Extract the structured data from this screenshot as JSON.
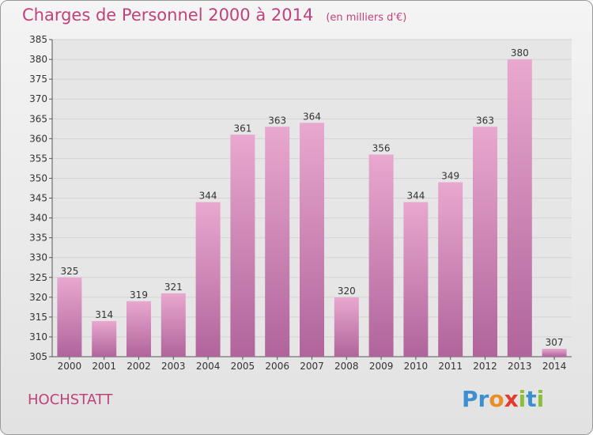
{
  "header": {
    "title": "Charges de Personnel 2000 à 2014",
    "subtitle": "(en milliers d'€)"
  },
  "place_name": "HOCHSTATT",
  "logo": {
    "text": "Proxiti",
    "letters": [
      {
        "ch": "P",
        "color": "#3c8fd0"
      },
      {
        "ch": "r",
        "color": "#3c8fd0"
      },
      {
        "ch": "o",
        "color": "#e98f27"
      },
      {
        "ch": "x",
        "color": "#e23a2e"
      },
      {
        "ch": "i",
        "color": "#8cbf3a"
      },
      {
        "ch": "t",
        "color": "#3c8fd0"
      },
      {
        "ch": "i",
        "color": "#8cbf3a"
      }
    ]
  },
  "colors": {
    "accent": "#c0427a",
    "bar_top": "#e9a8cf",
    "bar_bottom": "#b0649b",
    "grid": "#d3d3d3"
  },
  "chart_data": {
    "type": "bar",
    "categories": [
      "2000",
      "2001",
      "2002",
      "2003",
      "2004",
      "2005",
      "2006",
      "2007",
      "2008",
      "2009",
      "2010",
      "2011",
      "2012",
      "2013",
      "2014"
    ],
    "values": [
      325,
      314,
      319,
      321,
      344,
      361,
      363,
      364,
      320,
      356,
      344,
      349,
      363,
      380,
      307
    ],
    "ylim": [
      305,
      385
    ],
    "yticks": [
      305,
      310,
      315,
      320,
      325,
      330,
      335,
      340,
      345,
      350,
      355,
      360,
      365,
      370,
      375,
      380,
      385
    ],
    "grid": true,
    "data_labels": true
  }
}
